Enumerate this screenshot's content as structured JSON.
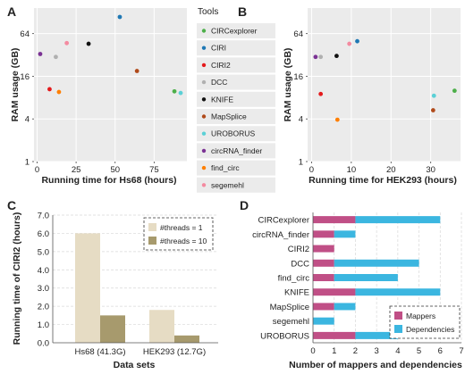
{
  "panels": {
    "A": "A",
    "B": "B",
    "C": "C",
    "D": "D"
  },
  "legend": {
    "title": "Tools"
  },
  "chart_data": [
    {
      "id": "A",
      "type": "scatter",
      "xlabel": "Running time for Hs68 (hours)",
      "ylabel": "RAM usage (GB)",
      "xlim": [
        -2,
        96
      ],
      "ylim_log2": [
        0,
        7.2
      ],
      "xticks": [
        "0",
        "25",
        "50",
        "75"
      ],
      "xtick_values": [
        0,
        25,
        50,
        75
      ],
      "yticks": [
        "1",
        "4",
        "16",
        "64"
      ],
      "ytick_values": [
        1,
        4,
        16,
        64
      ],
      "y_scale": "log2",
      "grid": true,
      "points": [
        {
          "tool": "CIRCexplorer",
          "x": 88,
          "y": 9.8,
          "color": "#4daf4a"
        },
        {
          "tool": "CIRI",
          "x": 53,
          "y": 110,
          "color": "#1f78b4"
        },
        {
          "tool": "CIRI2",
          "x": 8,
          "y": 10.5,
          "color": "#e41a1c"
        },
        {
          "tool": "DCC",
          "x": 12,
          "y": 30,
          "color": "#b0b0b0"
        },
        {
          "tool": "KNIFE",
          "x": 33,
          "y": 46,
          "color": "#111111"
        },
        {
          "tool": "MapSplice",
          "x": 64,
          "y": 19,
          "color": "#b04a1a"
        },
        {
          "tool": "UROBORUS",
          "x": 92,
          "y": 9.3,
          "color": "#5bd0d6"
        },
        {
          "tool": "circRNA_finder",
          "x": 2,
          "y": 33,
          "color": "#7b3294"
        },
        {
          "tool": "find_circ",
          "x": 14,
          "y": 9.6,
          "color": "#ff7f00"
        },
        {
          "tool": "segemehl",
          "x": 19,
          "y": 47,
          "color": "#f48aa0"
        }
      ]
    },
    {
      "id": "B",
      "type": "scatter",
      "xlabel": "Running time for HEK293 (hours)",
      "ylabel": "RAM usage (GB)",
      "xlim": [
        -1,
        37.5
      ],
      "ylim_log2": [
        0,
        7.2
      ],
      "xticks": [
        "0",
        "10",
        "20",
        "30"
      ],
      "xtick_values": [
        0,
        10,
        20,
        30
      ],
      "yticks": [
        "1",
        "4",
        "16",
        "64"
      ],
      "ytick_values": [
        1,
        4,
        16,
        64
      ],
      "y_scale": "log2",
      "grid": true,
      "points": [
        {
          "tool": "CIRCexplorer",
          "x": 36,
          "y": 10,
          "color": "#4daf4a"
        },
        {
          "tool": "CIRI",
          "x": 11.5,
          "y": 50,
          "color": "#1f78b4"
        },
        {
          "tool": "CIRI2",
          "x": 2.3,
          "y": 9,
          "color": "#e41a1c"
        },
        {
          "tool": "DCC",
          "x": 2.3,
          "y": 30,
          "color": "#b0b0b0"
        },
        {
          "tool": "KNIFE",
          "x": 6.3,
          "y": 31,
          "color": "#111111"
        },
        {
          "tool": "MapSplice",
          "x": 30.6,
          "y": 5.3,
          "color": "#b04a1a"
        },
        {
          "tool": "UROBORUS",
          "x": 30.8,
          "y": 8.5,
          "color": "#5bd0d6"
        },
        {
          "tool": "circRNA_finder",
          "x": 1,
          "y": 30,
          "color": "#7b3294"
        },
        {
          "tool": "find_circ",
          "x": 6.5,
          "y": 3.9,
          "color": "#ff7f00"
        },
        {
          "tool": "segemehl",
          "x": 9.5,
          "y": 46,
          "color": "#f48aa0"
        }
      ]
    },
    {
      "id": "C",
      "type": "bar",
      "xlabel": "Data sets",
      "ylabel": "Running time of CIRI2 (hours)",
      "ylim": [
        0,
        7
      ],
      "yticks": [
        "0.0",
        "1.0",
        "2.0",
        "3.0",
        "4.0",
        "5.0",
        "6.0",
        "7.0"
      ],
      "ytick_values": [
        0,
        1,
        2,
        3,
        4,
        5,
        6,
        7
      ],
      "categories": [
        "Hs68 (41.3G)",
        "HEK293 (12.7G)"
      ],
      "series": [
        {
          "name": "#threads = 1",
          "values": [
            6.0,
            1.8
          ],
          "color": "#e6dcc4"
        },
        {
          "name": "#threads = 10",
          "values": [
            1.5,
            0.4
          ],
          "color": "#a79a6d"
        }
      ],
      "legend_placement": "top-right",
      "grid": true
    },
    {
      "id": "D",
      "type": "bar",
      "orientation": "horizontal",
      "stacked": true,
      "xlabel": "Number of mappers and dependencies",
      "xlim": [
        0,
        7
      ],
      "xticks": [
        "0",
        "1",
        "2",
        "3",
        "4",
        "5",
        "6",
        "7"
      ],
      "xtick_values": [
        0,
        1,
        2,
        3,
        4,
        5,
        6,
        7
      ],
      "categories": [
        "CIRCexplorer",
        "circRNA_finder",
        "CIRI2",
        "DCC",
        "find_circ",
        "KNIFE",
        "MapSplice",
        "segemehl",
        "UROBORUS"
      ],
      "series": [
        {
          "name": "Mappers",
          "values": [
            2,
            1,
            1,
            1,
            1,
            2,
            1,
            0,
            2
          ],
          "color": "#c04f86"
        },
        {
          "name": "Dependencies",
          "values": [
            4,
            1,
            0,
            4,
            3,
            4,
            1,
            1,
            2
          ],
          "color": "#3bb6e0"
        }
      ],
      "legend_placement": "bottom-right",
      "grid": true
    }
  ]
}
